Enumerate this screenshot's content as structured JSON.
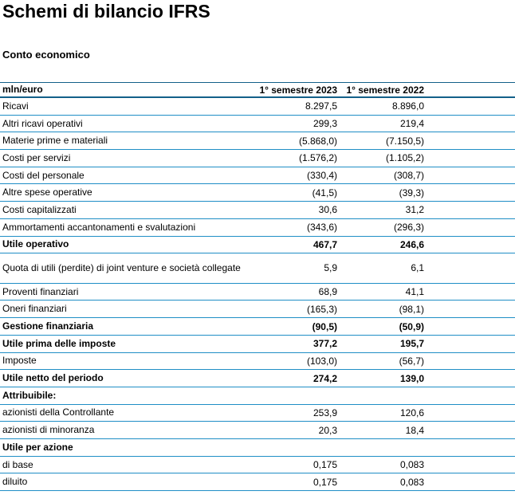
{
  "page": {
    "title": "Schemi di bilancio IFRS",
    "subtitle": "Conto economico"
  },
  "colors": {
    "dark_rule": "#136089",
    "light_rule": "#1F8EC6",
    "text": "#000000"
  },
  "table": {
    "unit_label": "mln/euro",
    "col_2023": "1° semestre 2023",
    "col_2022": "1° semestre 2022",
    "rows": [
      {
        "label": "Ricavi",
        "v2023": "8.297,5",
        "v2022": "8.896,0",
        "bold": false,
        "tall": false
      },
      {
        "label": "Altri ricavi operativi",
        "v2023": "299,3",
        "v2022": "219,4",
        "bold": false,
        "tall": false
      },
      {
        "label": "Materie prime e materiali",
        "v2023": "(5.868,0)",
        "v2022": "(7.150,5)",
        "bold": false,
        "tall": false
      },
      {
        "label": "Costi per servizi",
        "v2023": "(1.576,2)",
        "v2022": "(1.105,2)",
        "bold": false,
        "tall": false
      },
      {
        "label": "Costi del personale",
        "v2023": "(330,4)",
        "v2022": "(308,7)",
        "bold": false,
        "tall": false
      },
      {
        "label": "Altre spese operative",
        "v2023": "(41,5)",
        "v2022": "(39,3)",
        "bold": false,
        "tall": false
      },
      {
        "label": "Costi capitalizzati",
        "v2023": "30,6",
        "v2022": "31,2",
        "bold": false,
        "tall": false
      },
      {
        "label": "Ammortamenti accantonamenti e svalutazioni",
        "v2023": "(343,6)",
        "v2022": "(296,3)",
        "bold": false,
        "tall": false
      },
      {
        "label": "Utile operativo",
        "v2023": "467,7",
        "v2022": "246,6",
        "bold": true,
        "tall": false
      },
      {
        "label": "Quota di utili (perdite) di joint venture e società collegate",
        "v2023": "5,9",
        "v2022": "6,1",
        "bold": false,
        "tall": true
      },
      {
        "label": "Proventi finanziari",
        "v2023": "68,9",
        "v2022": "41,1",
        "bold": false,
        "tall": false
      },
      {
        "label": "Oneri finanziari",
        "v2023": "(165,3)",
        "v2022": "(98,1)",
        "bold": false,
        "tall": false
      },
      {
        "label": "Gestione finanziaria",
        "v2023": "(90,5)",
        "v2022": "(50,9)",
        "bold": true,
        "tall": false
      },
      {
        "label": "Utile prima delle imposte",
        "v2023": "377,2",
        "v2022": "195,7",
        "bold": true,
        "tall": false
      },
      {
        "label": "Imposte",
        "v2023": "(103,0)",
        "v2022": "(56,7)",
        "bold": false,
        "tall": false
      },
      {
        "label": "Utile netto del periodo",
        "v2023": "274,2",
        "v2022": "139,0",
        "bold": true,
        "tall": false
      },
      {
        "label": "Attribuibile:",
        "v2023": "",
        "v2022": "",
        "bold": true,
        "tall": false
      },
      {
        "label": "azionisti della Controllante",
        "v2023": "253,9",
        "v2022": "120,6",
        "bold": false,
        "tall": false
      },
      {
        "label": "azionisti di minoranza",
        "v2023": "20,3",
        "v2022": "18,4",
        "bold": false,
        "tall": false
      },
      {
        "label": "Utile per azione",
        "v2023": "",
        "v2022": "",
        "bold": true,
        "tall": false
      },
      {
        "label": "di base",
        "v2023": "0,175",
        "v2022": "0,083",
        "bold": false,
        "tall": false
      },
      {
        "label": "diluito",
        "v2023": "0,175",
        "v2022": "0,083",
        "bold": false,
        "tall": false
      }
    ]
  }
}
